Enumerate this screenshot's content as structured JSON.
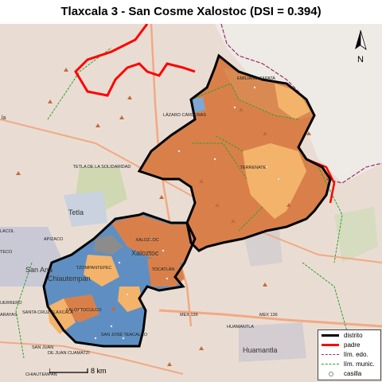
{
  "title": "Tlaxcala 3 - San Cosme Xalostoc (DSI = 0.394)",
  "colors": {
    "background_map": "#e8dcd2",
    "municipality_dark": "#d9804a",
    "municipality_light": "#f4b36a",
    "municipality_blue": "#5f8fc2",
    "district_border": "#000000",
    "parent_border": "#ff0000",
    "state_border": "#9a2f6a",
    "munic_border": "#2aa02a"
  },
  "municipalities": [
    {
      "name": "EMILIANO ZAPATA"
    },
    {
      "name": "LÁZARO CÁRDENAS"
    },
    {
      "name": "TERRENATE"
    },
    {
      "name": "XALOZTOC"
    },
    {
      "name": "TOCATLÁN"
    },
    {
      "name": "TZOMPANTEPEC"
    },
    {
      "name": "SANTA CRUZ TLAXCALA"
    },
    {
      "name": "XALOXTOCULCO"
    },
    {
      "name": "SAN JOSÉ TEACALCO"
    }
  ],
  "base_labels": {
    "tetla_sol": "TETLA DE LA SOLIDARIDAD",
    "tetla": "Tetla",
    "apizaco": "APIZACO",
    "san_ana": "San Ana",
    "chiautempan": "Chiautempan",
    "huamantla_town": "Huamantla",
    "huamantla": "HUAMANTLA",
    "mex136_a": "MEX 136",
    "mex136_b": "MEX 136",
    "xaloztoc_town": "Xaloztoc",
    "san_juan": "SAN JUAN",
    "juan_cuamatzi": "DE JUAN CUAMATZI",
    "chiautempan_lbl": "CHIAUTEMPAN",
    "ruerrero": "UERRERO",
    "arayas": "ARAYAS",
    "lacol": "LACOL",
    "tecl": "TECO",
    "la": "la"
  },
  "scale": {
    "label": "8 km"
  },
  "north": {
    "label": "N"
  },
  "legend": {
    "items": [
      {
        "label": "distrito"
      },
      {
        "label": "padre"
      },
      {
        "label": "lím. edo."
      },
      {
        "label": "lím. munic."
      },
      {
        "label": "casilla"
      }
    ]
  }
}
